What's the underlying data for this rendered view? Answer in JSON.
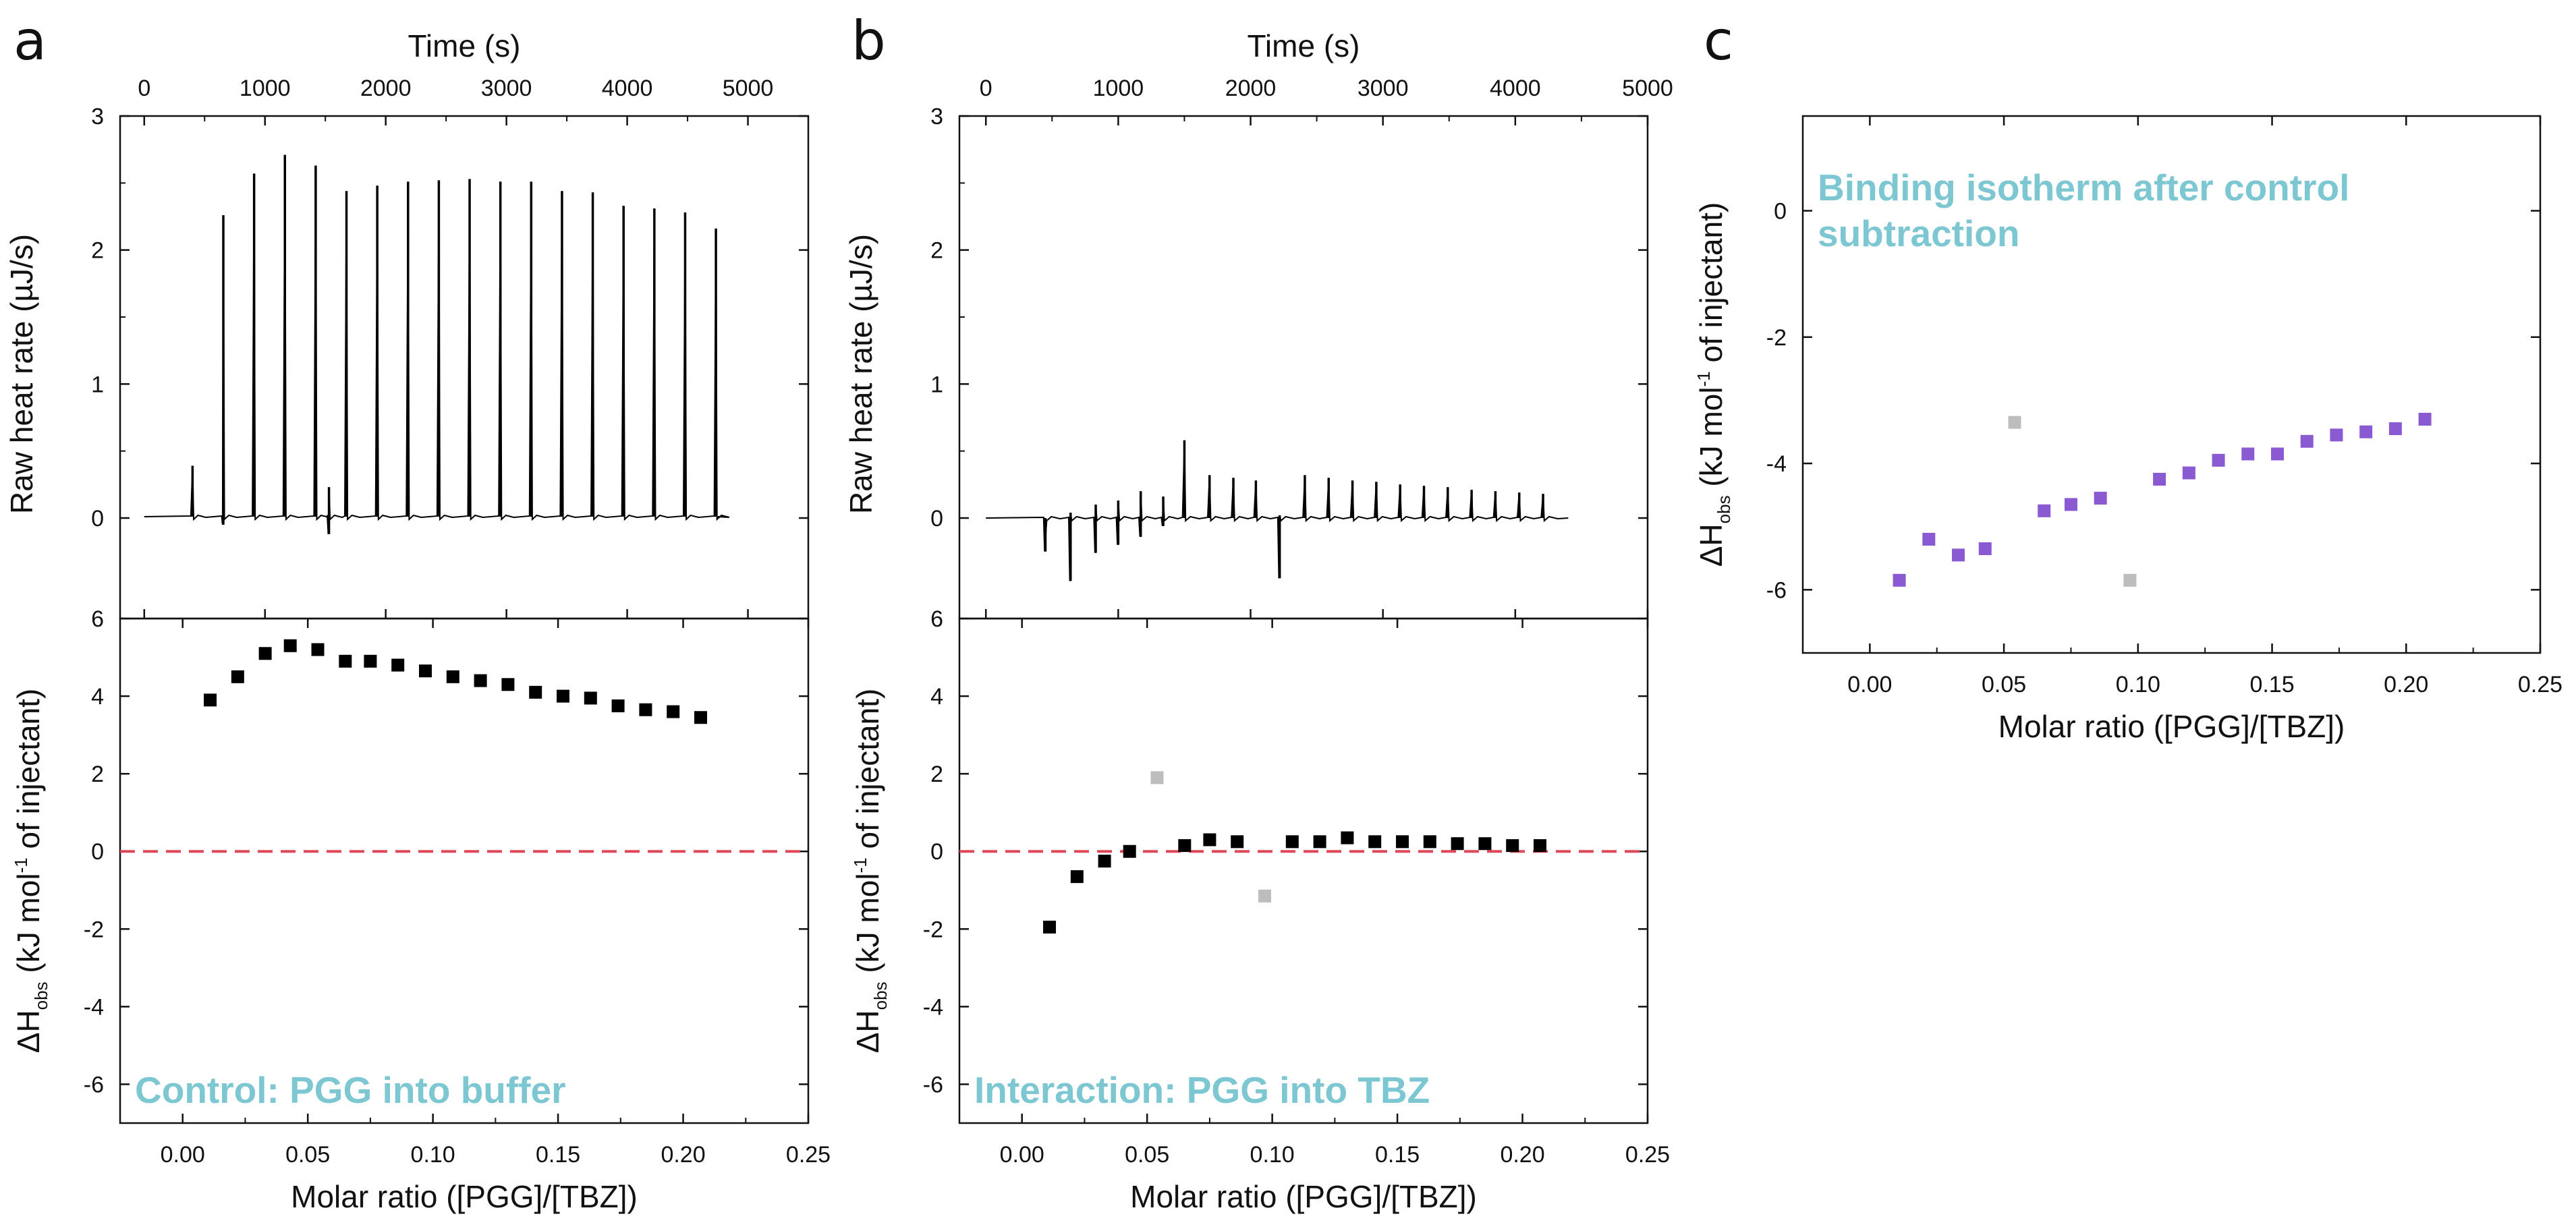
{
  "colors": {
    "axis": "#111111",
    "trace": "#000000",
    "point": "#000000",
    "excluded": "#bdbdbd",
    "isotherm": "#8a5ad2",
    "zero_line": "#e0485a",
    "annotation": "#7cc7d2"
  },
  "panel_labels": {
    "a": "a",
    "b": "b",
    "c": "c"
  },
  "chart_data": [
    {
      "id": "a-top",
      "type": "line",
      "title": "",
      "xlabel": "Time (s)",
      "ylabel": "Raw heat rate (µJ/s)",
      "xlim": [
        -200,
        5500
      ],
      "ylim": [
        -0.75,
        3
      ],
      "xticks": [
        0,
        1000,
        2000,
        3000,
        4000,
        5000
      ],
      "yticks": [
        0,
        1,
        2,
        3
      ],
      "baseline": 0.01,
      "trace_range": [
        0,
        4750
      ],
      "spikes": [
        {
          "t": 400,
          "h": 0.38,
          "n": 0
        },
        {
          "t": 655,
          "h": 2.25,
          "n": -0.06
        },
        {
          "t": 910,
          "h": 2.56,
          "n": 0
        },
        {
          "t": 1165,
          "h": 2.7,
          "n": 0
        },
        {
          "t": 1420,
          "h": 2.62,
          "n": 0
        },
        {
          "t": 1530,
          "h": 0.22,
          "n": -0.13
        },
        {
          "t": 1675,
          "h": 2.43,
          "n": 0
        },
        {
          "t": 1930,
          "h": 2.47,
          "n": 0
        },
        {
          "t": 2185,
          "h": 2.5,
          "n": 0
        },
        {
          "t": 2440,
          "h": 2.51,
          "n": 0
        },
        {
          "t": 2695,
          "h": 2.52,
          "n": 0
        },
        {
          "t": 2950,
          "h": 2.5,
          "n": 0
        },
        {
          "t": 3205,
          "h": 2.5,
          "n": 0
        },
        {
          "t": 3460,
          "h": 2.43,
          "n": 0
        },
        {
          "t": 3715,
          "h": 2.42,
          "n": 0
        },
        {
          "t": 3970,
          "h": 2.32,
          "n": 0
        },
        {
          "t": 4225,
          "h": 2.3,
          "n": 0
        },
        {
          "t": 4480,
          "h": 2.27,
          "n": 0
        },
        {
          "t": 4735,
          "h": 2.15,
          "n": 0
        }
      ]
    },
    {
      "id": "a-bottom",
      "type": "scatter",
      "title": "",
      "xlabel": "Molar ratio ([PGG]/[TBZ])",
      "ylabel_parts": [
        "ΔH",
        "obs",
        " (kJ mol",
        "-1",
        " of injectant)"
      ],
      "xlim": [
        -0.025,
        0.25
      ],
      "ylim": [
        -7,
        6
      ],
      "xticks": [
        "0.00",
        "0.05",
        "0.10",
        "0.15",
        "0.20",
        "0.25"
      ],
      "yticks": [
        -6,
        -4,
        -2,
        0,
        2,
        4,
        6
      ],
      "zero_line": true,
      "annotation": "Control: PGG into buffer",
      "series": [
        {
          "name": "control",
          "color_key": "point",
          "x": [
            0.011,
            0.022,
            0.033,
            0.043,
            0.054,
            0.065,
            0.075,
            0.086,
            0.097,
            0.108,
            0.119,
            0.13,
            0.141,
            0.152,
            0.163,
            0.174,
            0.185,
            0.196,
            0.207
          ],
          "y": [
            3.9,
            4.5,
            5.1,
            5.3,
            5.2,
            4.9,
            4.9,
            4.8,
            4.65,
            4.5,
            4.4,
            4.3,
            4.1,
            4.0,
            3.95,
            3.75,
            3.65,
            3.6,
            3.45
          ]
        }
      ]
    },
    {
      "id": "b-top",
      "type": "line",
      "title": "",
      "xlabel": "Time (s)",
      "ylabel": "Raw heat rate (µJ/s)",
      "xlim": [
        -200,
        5000
      ],
      "ylim": [
        -0.75,
        3
      ],
      "xticks": [
        0,
        1000,
        2000,
        3000,
        4000,
        5000
      ],
      "yticks": [
        0,
        1,
        2,
        3
      ],
      "baseline": 0.0,
      "trace_range": [
        0,
        4400
      ],
      "spikes": [
        {
          "t": 450,
          "h": 0.0,
          "n": -0.25
        },
        {
          "t": 640,
          "h": 0.04,
          "n": -0.47
        },
        {
          "t": 830,
          "h": 0.1,
          "n": -0.26
        },
        {
          "t": 1000,
          "h": 0.13,
          "n": -0.2
        },
        {
          "t": 1170,
          "h": 0.2,
          "n": -0.14
        },
        {
          "t": 1340,
          "h": 0.16,
          "n": -0.06
        },
        {
          "t": 1500,
          "h": 0.58,
          "n": 0
        },
        {
          "t": 1690,
          "h": 0.32,
          "n": 0
        },
        {
          "t": 1870,
          "h": 0.3,
          "n": 0
        },
        {
          "t": 2040,
          "h": 0.28,
          "n": 0
        },
        {
          "t": 2220,
          "h": 0.02,
          "n": -0.45
        },
        {
          "t": 2410,
          "h": 0.32,
          "n": 0
        },
        {
          "t": 2590,
          "h": 0.3,
          "n": 0
        },
        {
          "t": 2770,
          "h": 0.28,
          "n": 0
        },
        {
          "t": 2950,
          "h": 0.27,
          "n": 0
        },
        {
          "t": 3130,
          "h": 0.25,
          "n": 0
        },
        {
          "t": 3310,
          "h": 0.24,
          "n": 0
        },
        {
          "t": 3490,
          "h": 0.23,
          "n": 0
        },
        {
          "t": 3670,
          "h": 0.21,
          "n": 0
        },
        {
          "t": 3850,
          "h": 0.2,
          "n": 0
        },
        {
          "t": 4030,
          "h": 0.19,
          "n": 0
        },
        {
          "t": 4210,
          "h": 0.18,
          "n": 0
        }
      ]
    },
    {
      "id": "b-bottom",
      "type": "scatter",
      "title": "",
      "xlabel": "Molar ratio ([PGG]/[TBZ])",
      "ylabel_parts": [
        "ΔH",
        "obs",
        " (kJ mol",
        "-1",
        " of injectant)"
      ],
      "xlim": [
        -0.025,
        0.25
      ],
      "ylim": [
        -7,
        6
      ],
      "xticks": [
        "0.00",
        "0.05",
        "0.10",
        "0.15",
        "0.20",
        "0.25"
      ],
      "yticks": [
        -6,
        -4,
        -2,
        0,
        2,
        4,
        6
      ],
      "zero_line": true,
      "annotation": "Interaction: PGG into TBZ",
      "series": [
        {
          "name": "interaction",
          "color_key": "point",
          "x": [
            0.011,
            0.022,
            0.033,
            0.043,
            0.065,
            0.075,
            0.086,
            0.108,
            0.119,
            0.13,
            0.141,
            0.152,
            0.163,
            0.174,
            0.185,
            0.196,
            0.207
          ],
          "y": [
            -1.95,
            -0.65,
            -0.25,
            0.0,
            0.15,
            0.3,
            0.25,
            0.25,
            0.25,
            0.35,
            0.25,
            0.25,
            0.25,
            0.2,
            0.2,
            0.15,
            0.15
          ]
        },
        {
          "name": "excluded",
          "color_key": "excluded",
          "x": [
            0.054,
            0.097
          ],
          "y": [
            1.9,
            -1.15
          ]
        }
      ]
    },
    {
      "id": "c",
      "type": "scatter",
      "title": "",
      "xlabel": "Molar ratio ([PGG]/[TBZ])",
      "ylabel_parts": [
        "ΔH",
        "obs",
        " (kJ mol",
        "-1",
        " of injectant)"
      ],
      "xlim": [
        -0.025,
        0.25
      ],
      "ylim": [
        -7,
        1.5
      ],
      "xticks": [
        "0.00",
        "0.05",
        "0.10",
        "0.15",
        "0.20",
        "0.25"
      ],
      "yticks": [
        -6,
        -4,
        -2,
        0
      ],
      "zero_line": false,
      "annotation_lines": [
        "Binding isotherm after control",
        "subtraction"
      ],
      "series": [
        {
          "name": "isotherm",
          "color_key": "isotherm",
          "x": [
            0.011,
            0.022,
            0.033,
            0.043,
            0.065,
            0.075,
            0.086,
            0.108,
            0.119,
            0.13,
            0.141,
            0.152,
            0.163,
            0.174,
            0.185,
            0.196,
            0.207
          ],
          "y": [
            -5.85,
            -5.2,
            -5.45,
            -5.35,
            -4.75,
            -4.65,
            -4.55,
            -4.25,
            -4.15,
            -3.95,
            -3.85,
            -3.85,
            -3.65,
            -3.55,
            -3.5,
            -3.45,
            -3.3
          ]
        },
        {
          "name": "excluded",
          "color_key": "excluded",
          "x": [
            0.054,
            0.097
          ],
          "y": [
            -3.35,
            -5.85
          ]
        }
      ]
    }
  ]
}
